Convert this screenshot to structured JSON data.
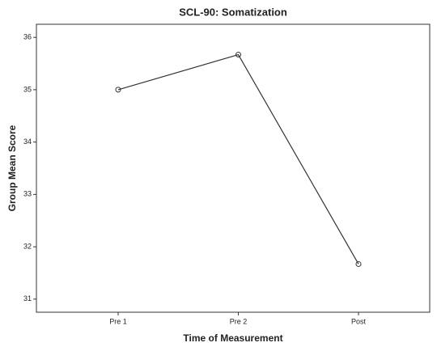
{
  "chart_data": {
    "type": "line",
    "title": "SCL-90: Somatization",
    "x_label": "Time of Measurement",
    "y_label": "Group Mean Score",
    "categories": [
      "Pre 1",
      "Pre 2",
      "Post"
    ],
    "series": [
      {
        "name": "Group Mean Score",
        "color": "#333333",
        "values": [
          35.0,
          35.67,
          31.67
        ]
      }
    ],
    "ylim": [
      30.75,
      36.25
    ],
    "yticks": [
      31,
      32,
      33,
      34,
      35,
      36
    ],
    "grid": false
  }
}
